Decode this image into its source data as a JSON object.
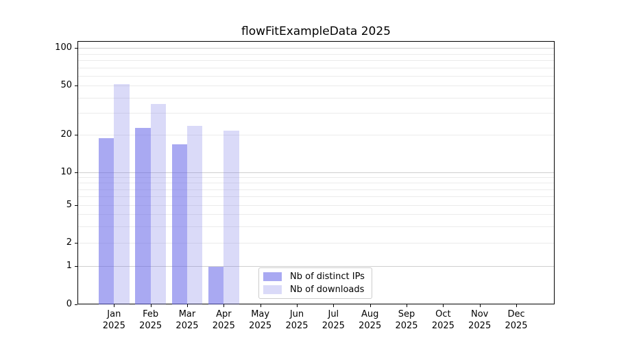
{
  "title": "flowFitExampleData 2025",
  "chart_data": {
    "type": "bar",
    "title": "flowFitExampleData 2025",
    "x_categories": [
      {
        "month": "Jan",
        "year": "2025"
      },
      {
        "month": "Feb",
        "year": "2025"
      },
      {
        "month": "Mar",
        "year": "2025"
      },
      {
        "month": "Apr",
        "year": "2025"
      },
      {
        "month": "May",
        "year": "2025"
      },
      {
        "month": "Jun",
        "year": "2025"
      },
      {
        "month": "Jul",
        "year": "2025"
      },
      {
        "month": "Aug",
        "year": "2025"
      },
      {
        "month": "Sep",
        "year": "2025"
      },
      {
        "month": "Oct",
        "year": "2025"
      },
      {
        "month": "Nov",
        "year": "2025"
      },
      {
        "month": "Dec",
        "year": "2025"
      }
    ],
    "series": [
      {
        "name": "Nb of distinct IPs",
        "color": "#a9a9f2",
        "fill": "rgba(98,98,232,0.55)",
        "values": [
          19,
          23,
          17,
          1,
          0,
          0,
          0,
          0,
          0,
          0,
          0,
          0
        ]
      },
      {
        "name": "Nb of downloads",
        "color": "#dadaf8",
        "fill": "rgba(106,106,226,0.25)",
        "values": [
          52,
          36,
          24,
          22,
          0,
          0,
          0,
          0,
          0,
          0,
          0,
          0
        ]
      }
    ],
    "y_axis": {
      "scale": "log-like (symlog: log spacing above 1, linear segment 0-1)",
      "ticks": [
        0,
        1,
        2,
        5,
        10,
        20,
        50,
        100
      ],
      "range_bottom": 0
    },
    "grid": {
      "on": true,
      "major_values": [
        1,
        10,
        100
      ],
      "minor_values": [
        2,
        3,
        4,
        5,
        6,
        7,
        8,
        9,
        20,
        30,
        40,
        50,
        60,
        70,
        80,
        90
      ],
      "major_color": "#cfcfcf",
      "minor_color": "#ebebeb"
    },
    "legend": {
      "position": "lower center inside plot",
      "labels": [
        "Nb of distinct IPs",
        "Nb of downloads"
      ]
    }
  }
}
